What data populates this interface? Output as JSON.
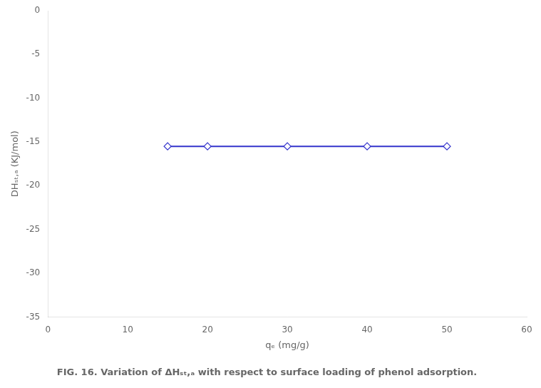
{
  "chart_data": {
    "type": "line",
    "title": "FIG. 16. Variation of ΔHₛₜ,ₐ with respect to surface loading of phenol adsorption.",
    "xlabel": "qₑ (mg/g)",
    "ylabel": "DHₛₜ,ₐ (KJ/mol)",
    "x": [
      15,
      20,
      30,
      40,
      50
    ],
    "values": [
      -15.5,
      -15.5,
      -15.5,
      -15.5,
      -15.5
    ],
    "color": "#3333cc",
    "marker": "diamond",
    "xlim": [
      0,
      60
    ],
    "xticks": [
      0,
      10,
      20,
      30,
      40,
      50,
      60
    ],
    "ylim": [
      -35,
      0
    ],
    "yticks": [
      0,
      -5,
      -10,
      -15,
      -20,
      -25,
      -30,
      -35
    ],
    "grid": false
  }
}
